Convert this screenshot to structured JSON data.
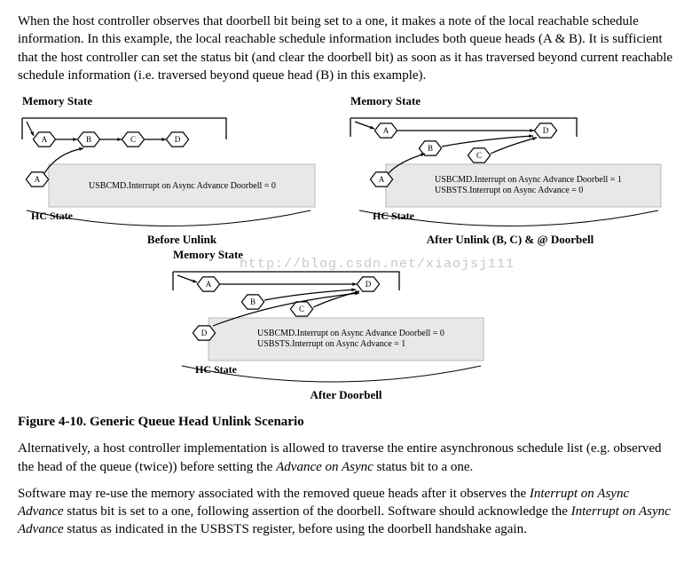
{
  "p1": "When the host controller observes that doorbell bit being set to a one, it makes a note of the local reachable schedule information. In this example, the local reachable schedule information includes both queue heads (A & B). It is sufficient that the host controller can set the status bit (and clear the doorbell bit) as soon as it has traversed beyond current reachable schedule information (i.e. traversed beyond queue head (B) in this example).",
  "mem_label": "Memory State",
  "hc_label": "HC State",
  "panel1": {
    "queue": "ABCD",
    "hc_letter": "A",
    "status_lines": [
      "USBCMD.Interrupt on Async Advance Doorbell = 0"
    ],
    "caption": "Before Unlink",
    "brace": true
  },
  "panel2": {
    "top_nodes": "AD",
    "detached_nodes": "BC",
    "hc_letter": "A",
    "status_lines": [
      "USBCMD.Interrupt on Async Advance Doorbell = 1",
      "USBSTS.Interrupt on Async Advance = 0"
    ],
    "caption": "After Unlink (B, C) & @ Doorbell",
    "brace": true
  },
  "panel3": {
    "top_nodes": "AD",
    "detached_nodes": "BC",
    "hc_letter": "D",
    "status_lines": [
      "USBCMD.Interrupt on Async Advance Doorbell = 0",
      "USBSTS.Interrupt on Async Advance = 1"
    ],
    "caption": "After Doorbell",
    "brace": true
  },
  "watermark": "http://blog.csdn.net/xiaojsj111",
  "fig_caption": "Figure 4-10. Generic Queue Head Unlink Scenario",
  "p2_a": "Alternatively, a host controller implementation is allowed to traverse the entire asynchronous schedule list (e.g. observed the head of the queue (twice)) before setting the ",
  "p2_i": "Advance on Async",
  "p2_b": " status bit to a one.",
  "p3_a": "Software may re-use the memory associated with the removed queue heads after it observes the ",
  "p3_i1": "Interrupt on Async Advance",
  "p3_b": " status bit is set to a one, following assertion of the doorbell. Software should acknowledge the ",
  "p3_i2": "Interrupt on Async Advance",
  "p3_c": " status as indicated in the USBSTS register, before using the doorbell handshake again.",
  "colors": {
    "greybox": "#e8e8e8",
    "greybox_border": "#b8b8b8",
    "line": "#000000",
    "text": "#000000"
  },
  "svg_font": "Times New Roman"
}
